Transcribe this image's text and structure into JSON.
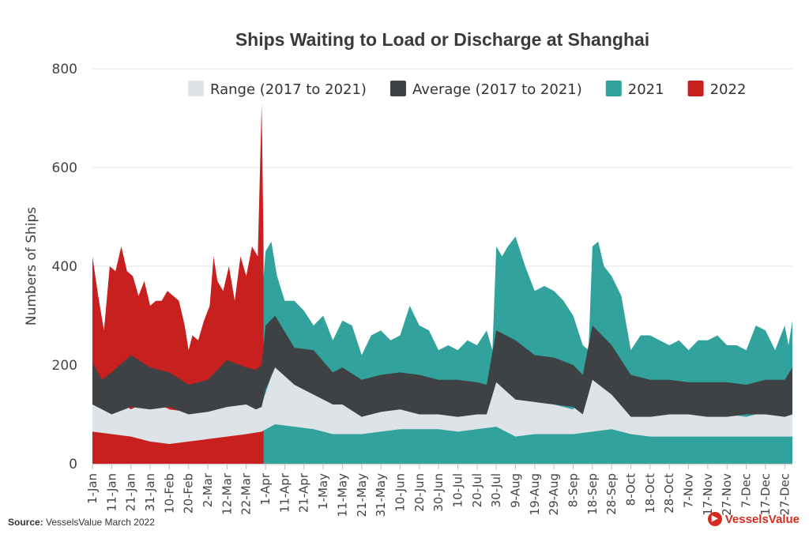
{
  "chart_data": {
    "type": "area",
    "title": "Ships Waiting to Load or Discharge at Shanghai",
    "ylabel": "Numbers of Ships",
    "xlabel": "",
    "ylim": [
      0,
      800
    ],
    "yticks": [
      0,
      200,
      400,
      600,
      800
    ],
    "grid": true,
    "legend_placement": "top",
    "x_tick_labels": [
      "1-Jan",
      "11-Jan",
      "21-Jan",
      "31-Jan",
      "10-Feb",
      "20-Feb",
      "2-Mar",
      "12-Mar",
      "22-Mar",
      "1-Apr",
      "11-Apr",
      "21-Apr",
      "1-May",
      "11-May",
      "21-May",
      "31-May",
      "10-Jun",
      "20-Jun",
      "30-Jun",
      "10-Jul",
      "20-Jul",
      "30-Jul",
      "9-Aug",
      "19-Aug",
      "29-Aug",
      "8-Sep",
      "18-Sep",
      "28-Sep",
      "8-Oct",
      "18-Oct",
      "28-Oct",
      "7-Nov",
      "17-Nov",
      "27-Nov",
      "7-Dec",
      "17-Dec",
      "27-Dec"
    ],
    "x_days": [
      0,
      10,
      20,
      30,
      40,
      50,
      60,
      70,
      80,
      90,
      100,
      110,
      120,
      130,
      140,
      150,
      160,
      170,
      180,
      190,
      200,
      210,
      220,
      230,
      240,
      250,
      260,
      270,
      280,
      290,
      300,
      310,
      320,
      330,
      340,
      350,
      360
    ],
    "series": [
      {
        "name": "Range (2017 to 2021)",
        "color": "#dde3e6",
        "x_days": [
          0,
          10,
          20,
          30,
          40,
          50,
          60,
          70,
          80,
          88,
          95,
          105,
          115,
          125,
          140,
          150,
          160,
          170,
          180,
          190,
          200,
          210,
          220,
          230,
          240,
          250,
          260,
          270,
          280,
          290,
          300,
          310,
          320,
          330,
          340,
          350,
          360,
          364
        ],
        "low": [
          65,
          60,
          55,
          45,
          40,
          45,
          50,
          55,
          60,
          65,
          80,
          75,
          70,
          60,
          60,
          65,
          70,
          70,
          70,
          65,
          70,
          75,
          55,
          60,
          60,
          60,
          65,
          70,
          60,
          55,
          55,
          55,
          55,
          55,
          55,
          55,
          55,
          55
        ],
        "high": [
          120,
          140,
          110,
          130,
          110,
          105,
          120,
          120,
          130,
          120,
          200,
          170,
          140,
          130,
          100,
          110,
          110,
          105,
          100,
          95,
          100,
          175,
          140,
          125,
          120,
          110,
          175,
          150,
          100,
          95,
          100,
          100,
          95,
          100,
          95,
          105,
          95,
          100
        ]
      },
      {
        "name": "Average (2017 to 2021)",
        "color": "#3f4245",
        "x_days": [
          0,
          5,
          10,
          20,
          30,
          40,
          50,
          60,
          70,
          80,
          85,
          88,
          90,
          95,
          105,
          115,
          125,
          130,
          140,
          150,
          160,
          170,
          180,
          190,
          200,
          205,
          210,
          220,
          230,
          240,
          250,
          255,
          260,
          270,
          280,
          290,
          300,
          310,
          320,
          330,
          340,
          350,
          360,
          364
        ],
        "low": [
          120,
          110,
          100,
          115,
          110,
          115,
          100,
          105,
          115,
          120,
          110,
          115,
          150,
          195,
          160,
          140,
          120,
          120,
          95,
          105,
          110,
          100,
          100,
          95,
          100,
          100,
          165,
          130,
          125,
          120,
          115,
          100,
          170,
          140,
          95,
          95,
          100,
          100,
          95,
          95,
          100,
          100,
          95,
          100
        ],
        "high": [
          205,
          170,
          185,
          220,
          195,
          185,
          160,
          170,
          210,
          195,
          190,
          200,
          280,
          300,
          235,
          230,
          185,
          195,
          170,
          180,
          185,
          180,
          170,
          170,
          165,
          160,
          270,
          250,
          220,
          215,
          200,
          180,
          280,
          240,
          180,
          170,
          170,
          165,
          165,
          165,
          160,
          170,
          170,
          195
        ]
      },
      {
        "name": "2021",
        "color": "#32a29c",
        "x_days": [
          0,
          5,
          10,
          15,
          20,
          25,
          30,
          35,
          40,
          45,
          50,
          55,
          60,
          65,
          70,
          75,
          80,
          85,
          88,
          90,
          93,
          96,
          100,
          105,
          110,
          115,
          120,
          125,
          130,
          135,
          140,
          145,
          150,
          155,
          160,
          165,
          170,
          175,
          180,
          185,
          190,
          195,
          200,
          205,
          208,
          210,
          213,
          216,
          220,
          225,
          230,
          235,
          240,
          245,
          250,
          255,
          258,
          260,
          263,
          266,
          270,
          275,
          280,
          285,
          290,
          295,
          300,
          305,
          310,
          315,
          320,
          325,
          330,
          335,
          340,
          345,
          350,
          355,
          360,
          362,
          364
        ],
        "values": [
          330,
          240,
          315,
          350,
          300,
          320,
          300,
          300,
          280,
          270,
          220,
          250,
          290,
          300,
          290,
          320,
          280,
          300,
          330,
          430,
          450,
          380,
          330,
          330,
          310,
          280,
          300,
          250,
          290,
          280,
          220,
          260,
          270,
          250,
          260,
          320,
          280,
          270,
          230,
          240,
          230,
          250,
          240,
          270,
          230,
          440,
          420,
          440,
          460,
          400,
          350,
          360,
          350,
          330,
          300,
          240,
          230,
          440,
          450,
          400,
          380,
          340,
          230,
          260,
          260,
          250,
          240,
          250,
          230,
          250,
          250,
          260,
          240,
          240,
          230,
          280,
          270,
          230,
          280,
          240,
          290
        ]
      },
      {
        "name": "2022",
        "color": "#c8201e",
        "x_days": [
          0,
          3,
          6,
          9,
          12,
          15,
          18,
          21,
          24,
          27,
          30,
          33,
          36,
          39,
          42,
          45,
          48,
          50,
          52,
          55,
          58,
          61,
          63,
          65,
          68,
          71,
          74,
          77,
          80,
          83,
          86,
          88,
          89
        ],
        "values": [
          420,
          340,
          270,
          400,
          390,
          440,
          390,
          380,
          340,
          370,
          320,
          330,
          330,
          350,
          340,
          330,
          280,
          230,
          260,
          250,
          290,
          320,
          420,
          370,
          350,
          400,
          330,
          420,
          380,
          440,
          420,
          730,
          440
        ]
      }
    ]
  },
  "footer": {
    "source_label": "Source:",
    "source_text": "VesselsValue March 2022",
    "brand": "VesselsValue"
  }
}
